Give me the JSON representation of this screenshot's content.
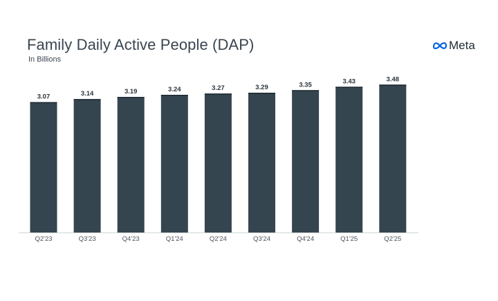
{
  "chart_data": {
    "type": "bar",
    "title": "Family Daily Active People (DAP)",
    "subtitle": "In Billions",
    "categories": [
      "Q2'23",
      "Q3'23",
      "Q4'23",
      "Q1'24",
      "Q2'24",
      "Q3'24",
      "Q4'24",
      "Q1'25",
      "Q2'25"
    ],
    "values": [
      3.07,
      3.14,
      3.19,
      3.24,
      3.27,
      3.29,
      3.35,
      3.43,
      3.48
    ],
    "data_labels": [
      "3.07",
      "3.14",
      "3.19",
      "3.24",
      "3.27",
      "3.29",
      "3.35",
      "3.43",
      "3.48"
    ],
    "ylim": [
      0,
      3.5
    ],
    "grid": false,
    "bar_color": "#35454f",
    "xlabel": "",
    "ylabel": ""
  },
  "brand": {
    "logo_text": "Meta",
    "logo_color": "#0064e0"
  }
}
